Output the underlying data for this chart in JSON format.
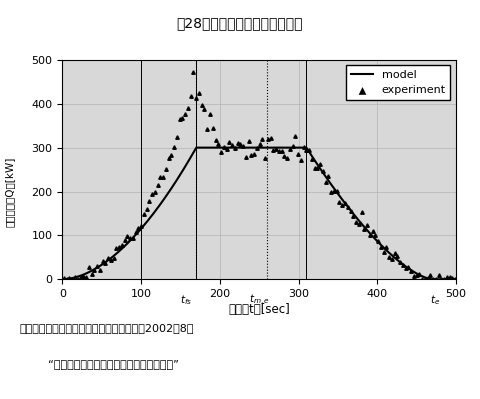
{
  "title": "図28　　モデルと実測値の比較",
  "xlabel": "時刻　t　[sec]",
  "ylabel_parts": [
    "発熱速度　Q　[kW]"
  ],
  "xlim": [
    0,
    500
  ],
  "ylim": [
    0,
    500
  ],
  "xticks": [
    0,
    100,
    200,
    300,
    400,
    500
  ],
  "yticks": [
    0,
    100,
    200,
    300,
    400,
    500
  ],
  "t_fs": 170,
  "t_me": 260,
  "t_e": 470,
  "t_solid1": 100,
  "t_solid2": 170,
  "t_solid3": 310,
  "t_end_plateau": 310,
  "model_plateau": 300,
  "source_line1": "出典；日本建築学会大会学術講演概要集　2002年8月",
  "source_line2": "“ウレタンマットの発熱速度の簡易予測法”",
  "legend_model": "model",
  "legend_experiment": "experiment",
  "bg_color": "#ffffff",
  "plot_bg": "#d8d8d8",
  "grid_color": "#aaaaaa",
  "line_color": "#000000",
  "marker_color": "#000000"
}
